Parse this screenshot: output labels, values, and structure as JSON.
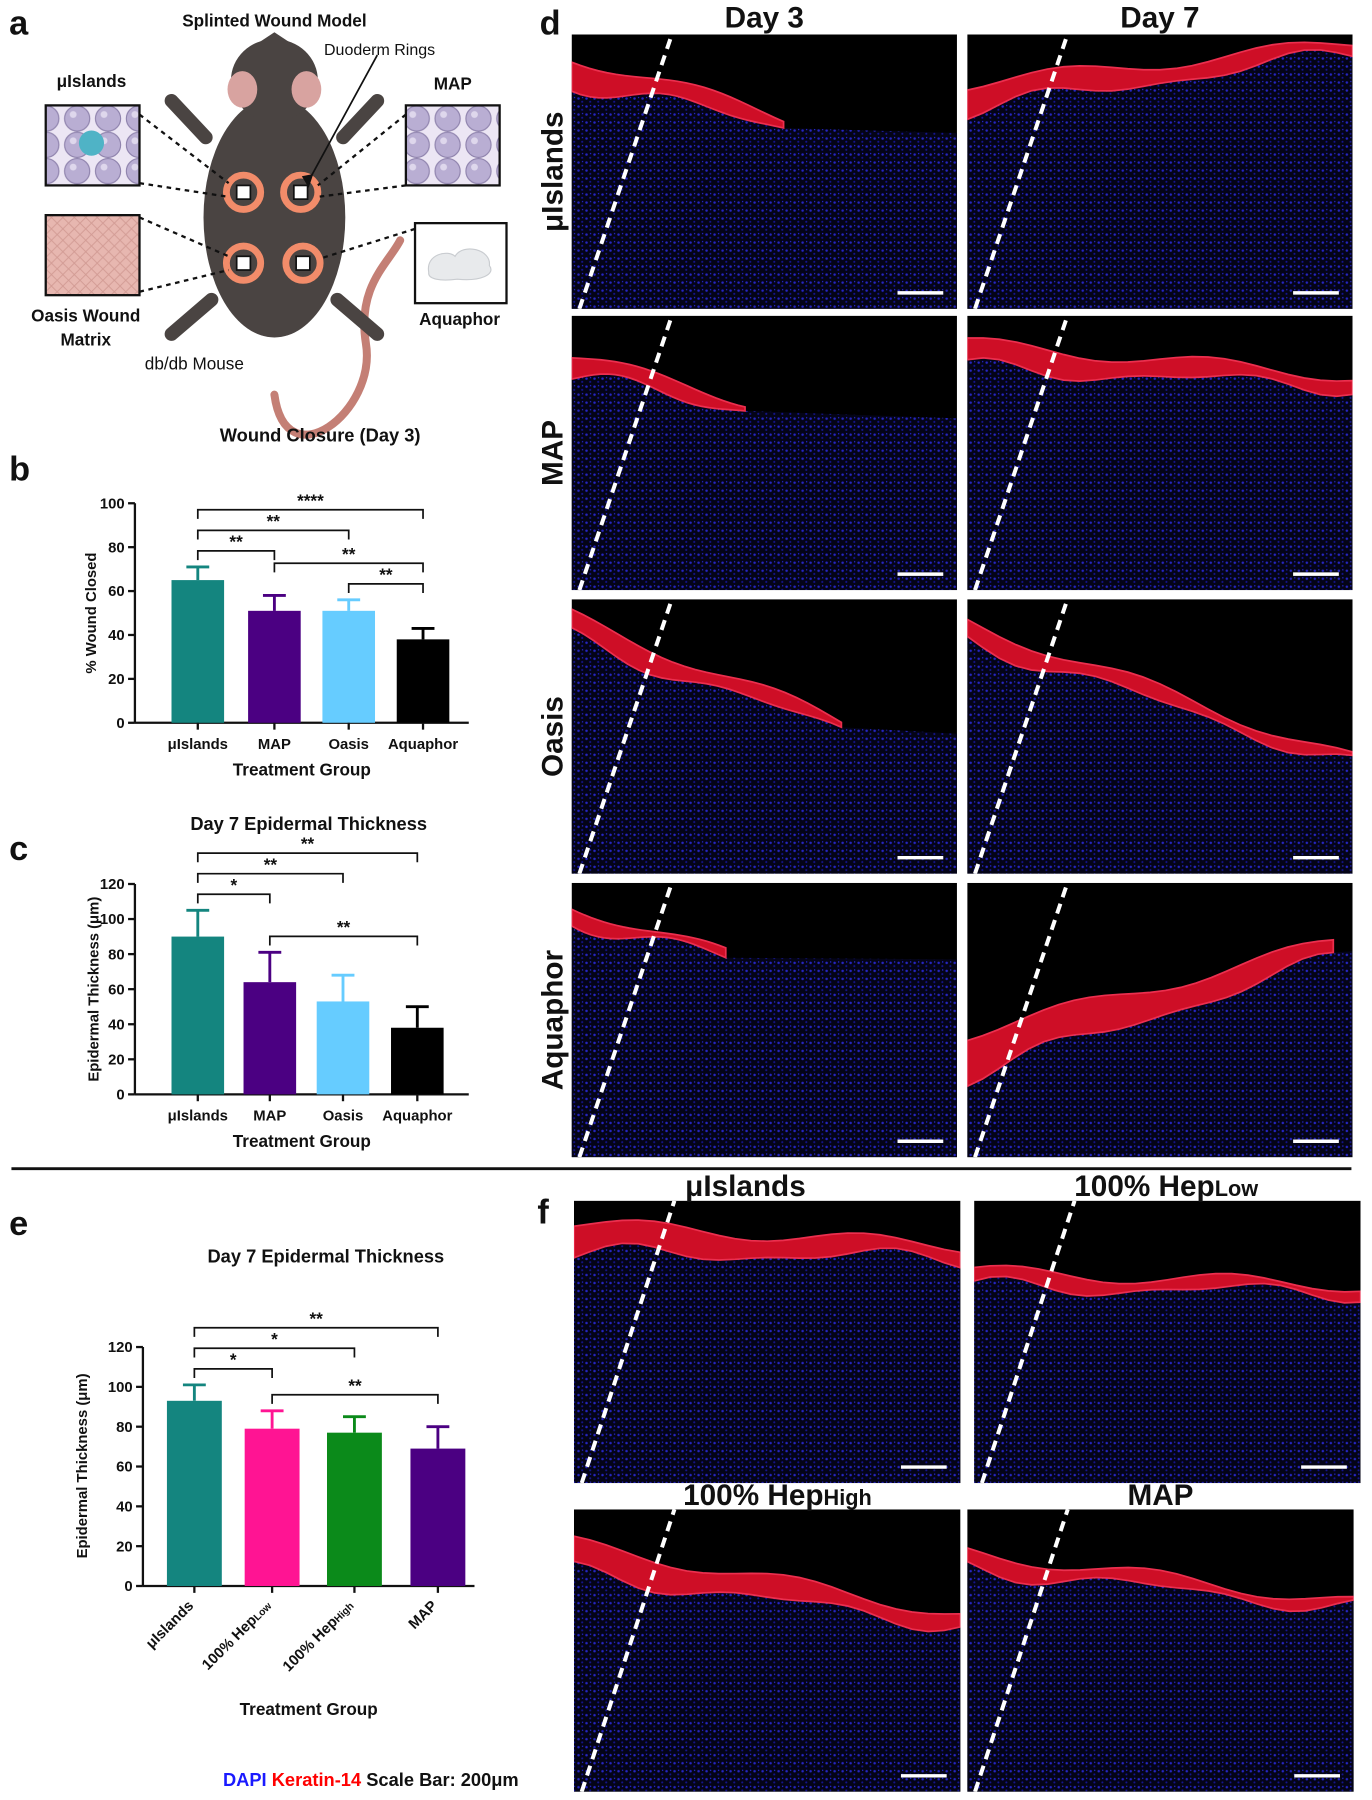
{
  "panel_labels": [
    "a",
    "b",
    "c",
    "d",
    "e",
    "f"
  ],
  "diagram": {
    "title": "Splinted Wound Model",
    "callout": "Duoderm Rings",
    "islands": "μIslands",
    "map": "MAP",
    "oasis": [
      "Oasis Wound",
      "Matrix"
    ],
    "aquaphor": "Aquaphor",
    "mouse": "db/db Mouse"
  },
  "chart_data": [
    {
      "type": "bar",
      "title": "Wound Closure (Day 3)",
      "y_label": "% Wound Closed",
      "x_label": "Treatment Group",
      "categories": [
        "μIslands",
        "MAP",
        "Oasis",
        "Aquaphor"
      ],
      "values": [
        65,
        51,
        51,
        38
      ],
      "errors": [
        6,
        7,
        5,
        5
      ],
      "colors": [
        "#14857f",
        "#4b0082",
        "#66ccff",
        "#000000"
      ],
      "ylim": [
        0,
        100
      ],
      "yticks": [
        0,
        20,
        40,
        60,
        80,
        100
      ],
      "significance": [
        {
          "groups": [
            0,
            1
          ],
          "label": "**"
        },
        {
          "groups": [
            2,
            3
          ],
          "label": "**"
        },
        {
          "groups": [
            1,
            3
          ],
          "label": "**"
        },
        {
          "groups": [
            0,
            2
          ],
          "label": "**"
        },
        {
          "groups": [
            0,
            3
          ],
          "label": "****"
        }
      ]
    },
    {
      "type": "bar",
      "title": "Day 7 Epidermal Thickness",
      "y_label": "Epidermal Thickness (μm)",
      "x_label": "Treatment Group",
      "categories": [
        "μIslands",
        "MAP",
        "Oasis",
        "Aquaphor"
      ],
      "values": [
        90,
        64,
        53,
        38
      ],
      "errors": [
        15,
        17,
        15,
        12
      ],
      "colors": [
        "#14857f",
        "#4b0082",
        "#66ccff",
        "#000000"
      ],
      "ylim": [
        0,
        120
      ],
      "yticks": [
        0,
        20,
        40,
        60,
        80,
        100,
        120
      ],
      "significance": [
        {
          "groups": [
            0,
            1
          ],
          "label": "*"
        },
        {
          "groups": [
            1,
            3
          ],
          "label": "**"
        },
        {
          "groups": [
            0,
            2
          ],
          "label": "**"
        },
        {
          "groups": [
            0,
            3
          ],
          "label": "**"
        }
      ]
    },
    {
      "type": "bar",
      "title": "Day 7 Epidermal Thickness",
      "y_label": "Epidermal Thickness (μm)",
      "x_label": "Treatment Group",
      "categories": [
        "μIslands",
        {
          "text": "100% Hep",
          "sub": "Low"
        },
        {
          "text": "100% Hep",
          "sub": "High"
        },
        "MAP"
      ],
      "values": [
        93,
        79,
        77,
        69
      ],
      "errors": [
        8,
        9,
        8,
        11
      ],
      "colors": [
        "#14857f",
        "#ff1493",
        "#0b8a1a",
        "#4b0082"
      ],
      "ylim": [
        0,
        120
      ],
      "yticks": [
        0,
        20,
        40,
        60,
        80,
        100,
        120
      ],
      "significance": [
        {
          "groups": [
            0,
            1
          ],
          "label": "*"
        },
        {
          "groups": [
            1,
            3
          ],
          "label": "**"
        },
        {
          "groups": [
            0,
            2
          ],
          "label": "*"
        },
        {
          "groups": [
            0,
            3
          ],
          "label": "**"
        }
      ]
    }
  ],
  "micrographs_d": {
    "columns": [
      "Day 3",
      "Day 7"
    ],
    "rows": [
      "μIslands",
      "MAP",
      "Oasis",
      "Aquaphor"
    ]
  },
  "micrographs_f": {
    "labels": [
      {
        "text": "μIslands"
      },
      {
        "text": "100% Hep",
        "sub": "Low"
      },
      {
        "text": "100% Hep",
        "sub": "High"
      },
      {
        "text": "MAP"
      }
    ]
  },
  "legend": {
    "items": [
      {
        "text": "DAPI",
        "color": "#1a1aff"
      },
      {
        "text": "Keratin-14",
        "color": "#ff0000"
      }
    ],
    "scale_bar": "Scale Bar: 200μm"
  }
}
